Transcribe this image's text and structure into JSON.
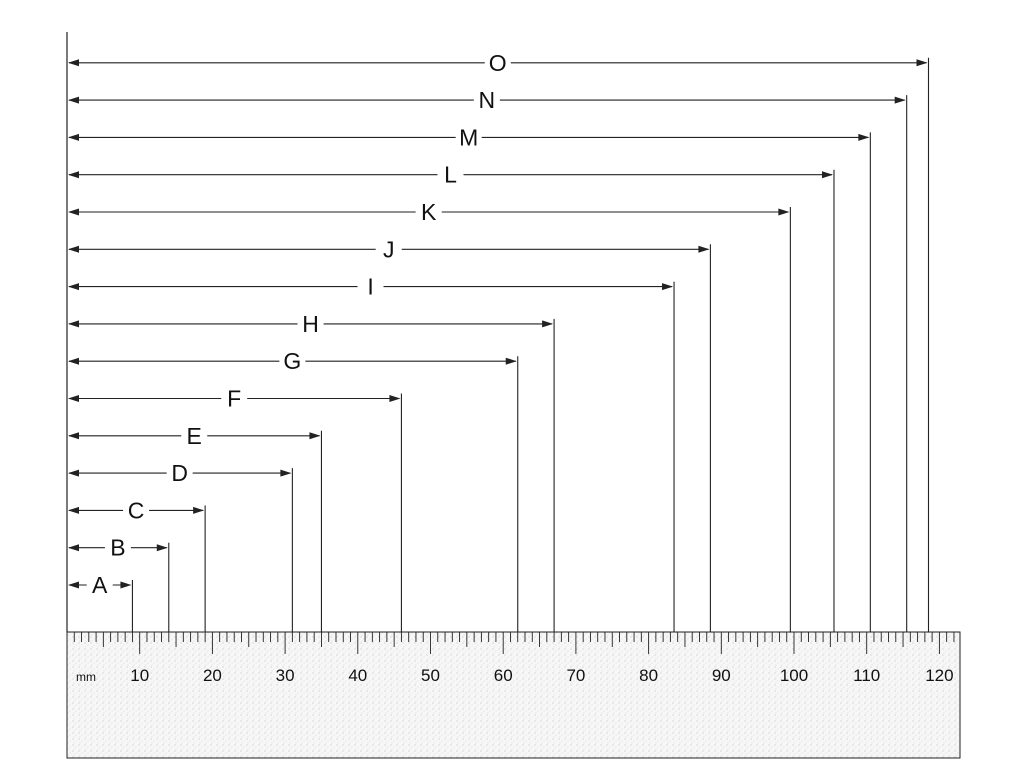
{
  "unit_label": "mm",
  "ruler_numbers": [
    "10",
    "20",
    "30",
    "40",
    "50",
    "60",
    "70",
    "80",
    "90",
    "100",
    "110",
    "120"
  ],
  "measurements": [
    {
      "label": "A",
      "value_mm": 9
    },
    {
      "label": "B",
      "value_mm": 14
    },
    {
      "label": "C",
      "value_mm": 19
    },
    {
      "label": "D",
      "value_mm": 31
    },
    {
      "label": "E",
      "value_mm": 35
    },
    {
      "label": "F",
      "value_mm": 46
    },
    {
      "label": "G",
      "value_mm": 62
    },
    {
      "label": "H",
      "value_mm": 67
    },
    {
      "label": "I",
      "value_mm": 83.5
    },
    {
      "label": "J",
      "value_mm": 88.5
    },
    {
      "label": "K",
      "value_mm": 99.5
    },
    {
      "label": "L",
      "value_mm": 105.5
    },
    {
      "label": "M",
      "value_mm": 110.5
    },
    {
      "label": "N",
      "value_mm": 115.5
    },
    {
      "label": "O",
      "value_mm": 118.5
    }
  ]
}
